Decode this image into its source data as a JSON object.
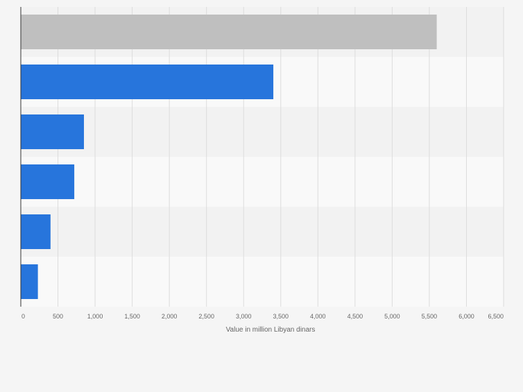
{
  "chart_data": {
    "type": "bar",
    "orientation": "horizontal",
    "categories": [
      "",
      "",
      "",
      "",
      "",
      ""
    ],
    "values": [
      5600,
      3400,
      850,
      720,
      400,
      230
    ],
    "highlight_index": 0,
    "colors": {
      "highlight": "#bfbfbf",
      "bar": "#2775dc",
      "band_dark": "#f2f2f2",
      "band_light": "#f9f9f9",
      "grid": "#dcdcdc",
      "axis": "#333333",
      "text": "#666666"
    },
    "xlim": [
      0,
      6500
    ],
    "xticks": [
      0,
      500,
      1000,
      1500,
      2000,
      2500,
      3000,
      3500,
      4000,
      4500,
      5000,
      5500,
      6000,
      6500
    ],
    "xtick_labels": [
      "0",
      "500",
      "1,000",
      "1,500",
      "2,000",
      "2,500",
      "3,000",
      "3,500",
      "4,000",
      "4,500",
      "5,000",
      "5,500",
      "6,000",
      "6,500"
    ],
    "xlabel": "Value in million Libyan dinars",
    "ylabel": "",
    "title": "",
    "grid": true,
    "legend": "none"
  }
}
